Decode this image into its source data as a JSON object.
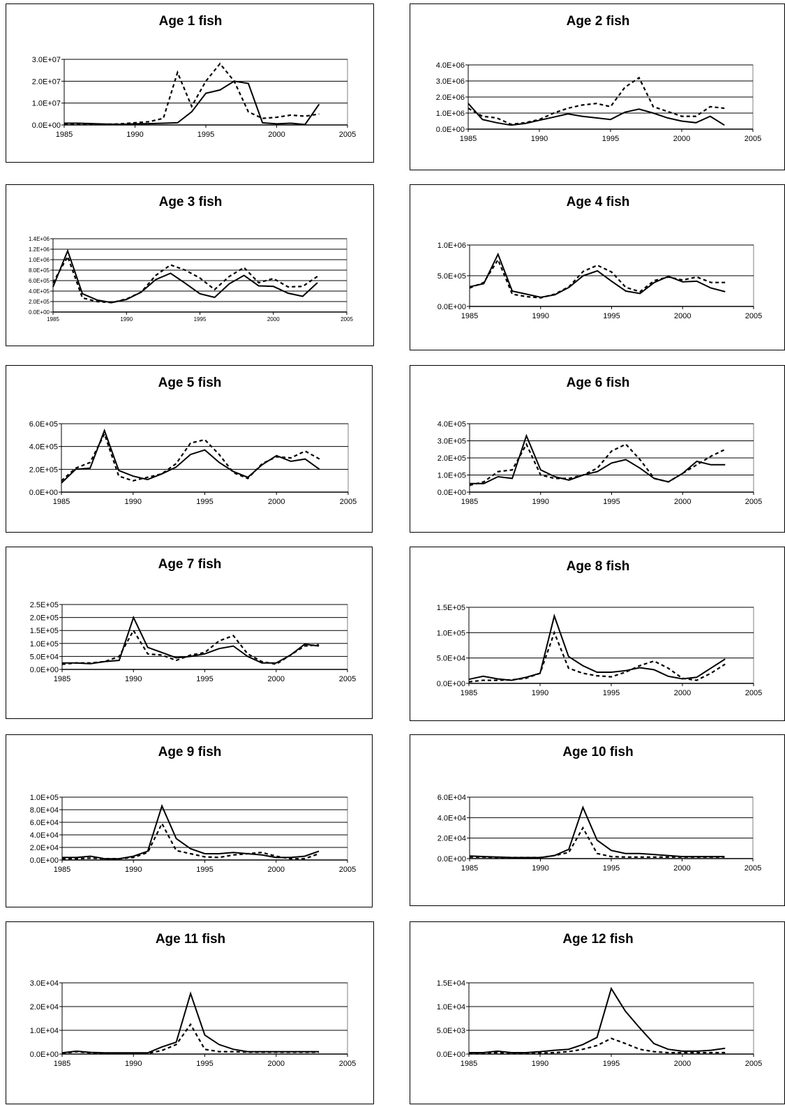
{
  "chart_data": [
    {
      "type": "line",
      "title": "Age 1 fish",
      "xlim": [
        1985,
        2005
      ],
      "xticks": [
        "1985",
        "1990",
        "1995",
        "2000",
        "2005"
      ],
      "ylim": [
        0,
        30000000
      ],
      "yticks": [
        "0.0E+00",
        "1.0E+07",
        "2.0E+07",
        "3.0E+07"
      ],
      "yticks_small": false,
      "grid": true,
      "x": [
        1985,
        1986,
        1987,
        1988,
        1989,
        1990,
        1991,
        1992,
        1993,
        1994,
        1995,
        1996,
        1997,
        1998,
        1999,
        2000,
        2001,
        2002,
        2003
      ],
      "series": [
        {
          "style": "solid",
          "values": [
            800000,
            800000,
            600000,
            400000,
            300000,
            500000,
            600000,
            800000,
            1000000,
            6000000,
            14500000,
            16000000,
            20000000,
            19000000,
            1000000,
            500000,
            800000,
            200000,
            9500000
          ]
        },
        {
          "style": "dashed",
          "values": [
            300000,
            300000,
            300000,
            300000,
            500000,
            1000000,
            1500000,
            3000000,
            24000000,
            8500000,
            20000000,
            28000000,
            20000000,
            6000000,
            3000000,
            3500000,
            4500000,
            4000000,
            5000000
          ]
        }
      ]
    },
    {
      "type": "line",
      "title": "Age 2 fish",
      "xlim": [
        1985,
        2005
      ],
      "xticks": [
        "1985",
        "1990",
        "1995",
        "2000",
        "2005"
      ],
      "ylim": [
        0,
        4000000
      ],
      "yticks": [
        "0.0E+00",
        "1.0E+06",
        "2.0E+06",
        "3.0E+06",
        "4.0E+06"
      ],
      "yticks_small": false,
      "grid": true,
      "x": [
        1985,
        1986,
        1987,
        1988,
        1989,
        1990,
        1991,
        1992,
        1993,
        1994,
        1995,
        1996,
        1997,
        1998,
        1999,
        2000,
        2001,
        2002,
        2003
      ],
      "series": [
        {
          "style": "solid",
          "values": [
            1600000,
            600000,
            400000,
            250000,
            350000,
            550000,
            750000,
            950000,
            800000,
            700000,
            600000,
            1050000,
            1250000,
            1000000,
            700000,
            500000,
            400000,
            800000,
            250000
          ]
        },
        {
          "style": "dashed",
          "values": [
            1300000,
            800000,
            700000,
            300000,
            400000,
            600000,
            1000000,
            1300000,
            1500000,
            1600000,
            1400000,
            2600000,
            3200000,
            1400000,
            1100000,
            800000,
            800000,
            1400000,
            1300000
          ]
        }
      ]
    },
    {
      "type": "line",
      "title": "Age 3 fish",
      "xlim": [
        1985,
        2005
      ],
      "xticks": [
        "1985",
        "1990",
        "1995",
        "2000",
        "2005"
      ],
      "ylim": [
        0,
        1400000
      ],
      "yticks": [
        "0.0E+00",
        "2.0E+05",
        "4.0E+05",
        "6.0E+05",
        "8.0E+05",
        "1.0E+06",
        "1.2E+06",
        "1.4E+06"
      ],
      "yticks_small": true,
      "grid": true,
      "x": [
        1985,
        1986,
        1987,
        1988,
        1989,
        1990,
        1991,
        1992,
        1993,
        1994,
        1995,
        1996,
        1997,
        1998,
        1999,
        2000,
        2001,
        2002,
        2003
      ],
      "series": [
        {
          "style": "solid",
          "values": [
            480000,
            1170000,
            350000,
            230000,
            180000,
            240000,
            380000,
            620000,
            740000,
            550000,
            350000,
            280000,
            540000,
            700000,
            500000,
            490000,
            360000,
            300000,
            560000
          ]
        },
        {
          "style": "dashed",
          "values": [
            560000,
            1060000,
            270000,
            200000,
            180000,
            250000,
            380000,
            700000,
            900000,
            800000,
            650000,
            430000,
            680000,
            850000,
            560000,
            640000,
            480000,
            490000,
            680000
          ]
        }
      ]
    },
    {
      "type": "line",
      "title": "Age 4 fish",
      "xlim": [
        1985,
        2005
      ],
      "xticks": [
        "1985",
        "1990",
        "1995",
        "2000",
        "2005"
      ],
      "ylim": [
        0,
        1000000
      ],
      "yticks": [
        "0.0E+00",
        "5.0E+05",
        "1.0E+06"
      ],
      "yticks_small": false,
      "grid": true,
      "x": [
        1985,
        1986,
        1987,
        1988,
        1989,
        1990,
        1991,
        1992,
        1993,
        1994,
        1995,
        1996,
        1997,
        1998,
        1999,
        2000,
        2001,
        2002,
        2003
      ],
      "series": [
        {
          "style": "solid",
          "values": [
            320000,
            370000,
            850000,
            250000,
            200000,
            150000,
            190000,
            310000,
            500000,
            580000,
            410000,
            250000,
            210000,
            390000,
            490000,
            400000,
            410000,
            300000,
            240000
          ]
        },
        {
          "style": "dashed",
          "values": [
            300000,
            390000,
            760000,
            200000,
            160000,
            140000,
            200000,
            320000,
            570000,
            670000,
            560000,
            310000,
            240000,
            420000,
            480000,
            430000,
            480000,
            390000,
            390000
          ]
        }
      ]
    },
    {
      "type": "line",
      "title": "Age 5 fish",
      "xlim": [
        1985,
        2005
      ],
      "xticks": [
        "1985",
        "1990",
        "1995",
        "2000",
        "2005"
      ],
      "ylim": [
        0,
        600000
      ],
      "yticks": [
        "0.0E+00",
        "2.0E+05",
        "4.0E+05",
        "6.0E+05"
      ],
      "yticks_small": false,
      "grid": true,
      "x": [
        1985,
        1986,
        1987,
        1988,
        1989,
        1990,
        1991,
        1992,
        1993,
        1994,
        1995,
        1996,
        1997,
        1998,
        1999,
        2000,
        2001,
        2002,
        2003
      ],
      "series": [
        {
          "style": "solid",
          "values": [
            80000,
            200000,
            210000,
            540000,
            190000,
            140000,
            110000,
            160000,
            220000,
            330000,
            370000,
            260000,
            180000,
            130000,
            240000,
            320000,
            270000,
            290000,
            200000
          ]
        },
        {
          "style": "dashed",
          "values": [
            100000,
            210000,
            260000,
            510000,
            140000,
            100000,
            130000,
            160000,
            250000,
            430000,
            460000,
            330000,
            170000,
            120000,
            250000,
            310000,
            300000,
            360000,
            290000
          ]
        }
      ]
    },
    {
      "type": "line",
      "title": "Age 6 fish",
      "xlim": [
        1985,
        2005
      ],
      "xticks": [
        "1985",
        "1990",
        "1995",
        "2000",
        "2005"
      ],
      "ylim": [
        0,
        400000
      ],
      "yticks": [
        "0.0E+00",
        "1.0E+05",
        "2.0E+05",
        "3.0E+05",
        "4.0E+05"
      ],
      "yticks_small": false,
      "grid": true,
      "x": [
        1985,
        1986,
        1987,
        1988,
        1989,
        1990,
        1991,
        1992,
        1993,
        1994,
        1995,
        1996,
        1997,
        1998,
        1999,
        2000,
        2001,
        2002,
        2003
      ],
      "series": [
        {
          "style": "solid",
          "values": [
            50000,
            50000,
            90000,
            80000,
            330000,
            130000,
            90000,
            70000,
            100000,
            120000,
            170000,
            190000,
            140000,
            80000,
            60000,
            110000,
            180000,
            160000,
            160000
          ]
        },
        {
          "style": "dashed",
          "values": [
            40000,
            60000,
            120000,
            130000,
            280000,
            100000,
            80000,
            80000,
            100000,
            140000,
            240000,
            280000,
            190000,
            80000,
            60000,
            110000,
            160000,
            210000,
            250000
          ]
        }
      ]
    },
    {
      "type": "line",
      "title": "Age 7 fish",
      "xlim": [
        1985,
        2005
      ],
      "xticks": [
        "1985",
        "1990",
        "1995",
        "2000",
        "2005"
      ],
      "ylim": [
        0,
        250000
      ],
      "yticks": [
        "0.0E+00",
        "5.0E+04",
        "1.0E+05",
        "1.5E+05",
        "2.0E+05",
        "2.5E+05"
      ],
      "yticks_small": false,
      "grid": true,
      "x": [
        1985,
        1986,
        1987,
        1988,
        1989,
        1990,
        1991,
        1992,
        1993,
        1994,
        1995,
        1996,
        1997,
        1998,
        1999,
        2000,
        2001,
        2002,
        2003
      ],
      "series": [
        {
          "style": "solid",
          "values": [
            25000,
            25000,
            22000,
            30000,
            35000,
            200000,
            85000,
            65000,
            45000,
            50000,
            60000,
            80000,
            90000,
            50000,
            25000,
            25000,
            55000,
            97000,
            90000
          ]
        },
        {
          "style": "dashed",
          "values": [
            20000,
            25000,
            25000,
            30000,
            50000,
            150000,
            60000,
            55000,
            35000,
            55000,
            65000,
            110000,
            130000,
            60000,
            30000,
            20000,
            55000,
            90000,
            95000
          ]
        }
      ]
    },
    {
      "type": "line",
      "title": "Age 8 fish",
      "xlim": [
        1985,
        2005
      ],
      "xticks": [
        "1985",
        "1990",
        "1995",
        "2000",
        "2005"
      ],
      "ylim": [
        0,
        150000
      ],
      "yticks": [
        "0.0E+00",
        "5.0E+04",
        "1.0E+05",
        "1.5E+05"
      ],
      "yticks_small": false,
      "grid": true,
      "x": [
        1985,
        1986,
        1987,
        1988,
        1989,
        1990,
        1991,
        1992,
        1993,
        1994,
        1995,
        1996,
        1997,
        1998,
        1999,
        2000,
        2001,
        2002,
        2003
      ],
      "series": [
        {
          "style": "solid",
          "values": [
            8000,
            14000,
            9000,
            6000,
            12000,
            20000,
            133000,
            53000,
            35000,
            22000,
            22000,
            25000,
            31000,
            27000,
            14000,
            9000,
            12000,
            30000,
            48000
          ]
        },
        {
          "style": "dashed",
          "values": [
            3000,
            6000,
            6000,
            7000,
            10000,
            20000,
            100000,
            30000,
            20000,
            15000,
            13000,
            22000,
            35000,
            44000,
            30000,
            10000,
            6000,
            20000,
            38000
          ]
        }
      ]
    },
    {
      "type": "line",
      "title": "Age 9 fish",
      "xlim": [
        1985,
        2005
      ],
      "xticks": [
        "1985",
        "1990",
        "1995",
        "2000",
        "2005"
      ],
      "ylim": [
        0,
        100000
      ],
      "yticks": [
        "0.0E+00",
        "2.0E+04",
        "4.0E+04",
        "6.0E+04",
        "8.0E+04",
        "1.0E+05"
      ],
      "yticks_small": false,
      "grid": true,
      "x": [
        1985,
        1986,
        1987,
        1988,
        1989,
        1990,
        1991,
        1992,
        1993,
        1994,
        1995,
        1996,
        1997,
        1998,
        1999,
        2000,
        2001,
        2002,
        2003
      ],
      "series": [
        {
          "style": "solid",
          "values": [
            4000,
            4000,
            6000,
            2000,
            2000,
            6000,
            14000,
            86000,
            34000,
            18000,
            10000,
            10000,
            12000,
            10000,
            8000,
            4000,
            4000,
            6000,
            14000
          ]
        },
        {
          "style": "dashed",
          "values": [
            2000,
            2000,
            3000,
            2000,
            2000,
            4000,
            12000,
            58000,
            15000,
            10000,
            5000,
            4000,
            8000,
            10000,
            12000,
            6000,
            2000,
            2000,
            10000
          ]
        }
      ]
    },
    {
      "type": "line",
      "title": "Age 10 fish",
      "xlim": [
        1985,
        2005
      ],
      "xticks": [
        "1985",
        "1990",
        "1995",
        "2000",
        "2005"
      ],
      "ylim": [
        0,
        60000
      ],
      "yticks": [
        "0.0E+00",
        "2.0E+04",
        "4.0E+04",
        "6.0E+04"
      ],
      "yticks_small": false,
      "grid": true,
      "x": [
        1985,
        1986,
        1987,
        1988,
        1989,
        1990,
        1991,
        1992,
        1993,
        1994,
        1995,
        1996,
        1997,
        1998,
        1999,
        2000,
        2001,
        2002,
        2003
      ],
      "series": [
        {
          "style": "solid",
          "values": [
            2500,
            2000,
            1500,
            1000,
            1000,
            1000,
            3000,
            9000,
            50000,
            18000,
            8000,
            5000,
            5000,
            4000,
            3000,
            2000,
            2000,
            2000,
            2000
          ]
        },
        {
          "style": "dashed",
          "values": [
            1500,
            1500,
            1000,
            1000,
            1000,
            1000,
            3000,
            6000,
            30000,
            5000,
            2000,
            1500,
            1500,
            1500,
            1500,
            1500,
            1500,
            1500,
            1500
          ]
        }
      ]
    },
    {
      "type": "line",
      "title": "Age 11 fish",
      "xlim": [
        1985,
        2005
      ],
      "xticks": [
        "1985",
        "1990",
        "1995",
        "2000",
        "2005"
      ],
      "ylim": [
        0,
        30000
      ],
      "yticks": [
        "0.0E+00",
        "1.0E+04",
        "2.0E+04",
        "3.0E+04"
      ],
      "yticks_small": false,
      "grid": true,
      "x": [
        1985,
        1986,
        1987,
        1988,
        1989,
        1990,
        1991,
        1992,
        1993,
        1994,
        1995,
        1996,
        1997,
        1998,
        1999,
        2000,
        2001,
        2002,
        2003
      ],
      "series": [
        {
          "style": "solid",
          "values": [
            500,
            1200,
            700,
            500,
            500,
            500,
            500,
            3000,
            5000,
            25500,
            8000,
            4000,
            2000,
            1000,
            1000,
            1000,
            1000,
            1000,
            1000
          ]
        },
        {
          "style": "dashed",
          "values": [
            300,
            1000,
            500,
            300,
            300,
            300,
            300,
            1500,
            4000,
            12500,
            2000,
            1000,
            1000,
            800,
            800,
            800,
            800,
            800,
            800
          ]
        }
      ]
    },
    {
      "type": "line",
      "title": "Age 12 fish",
      "xlim": [
        1985,
        2005
      ],
      "xticks": [
        "1985",
        "1990",
        "1995",
        "2000",
        "2005"
      ],
      "ylim": [
        0,
        15000
      ],
      "yticks": [
        "0.0E+00",
        "5.0E+03",
        "1.0E+04",
        "1.5E+04"
      ],
      "yticks_small": false,
      "grid": true,
      "x": [
        1985,
        1986,
        1987,
        1988,
        1989,
        1990,
        1991,
        1992,
        1993,
        1994,
        1995,
        1996,
        1997,
        1998,
        1999,
        2000,
        2001,
        2002,
        2003
      ],
      "series": [
        {
          "style": "solid",
          "values": [
            300,
            300,
            600,
            300,
            300,
            500,
            800,
            1000,
            2000,
            3500,
            13800,
            9000,
            5500,
            2200,
            1000,
            600,
            600,
            800,
            1200
          ]
        },
        {
          "style": "dashed",
          "values": [
            200,
            200,
            300,
            200,
            200,
            200,
            300,
            500,
            1000,
            1800,
            3300,
            2200,
            1000,
            500,
            300,
            300,
            300,
            300,
            300
          ]
        }
      ]
    }
  ]
}
